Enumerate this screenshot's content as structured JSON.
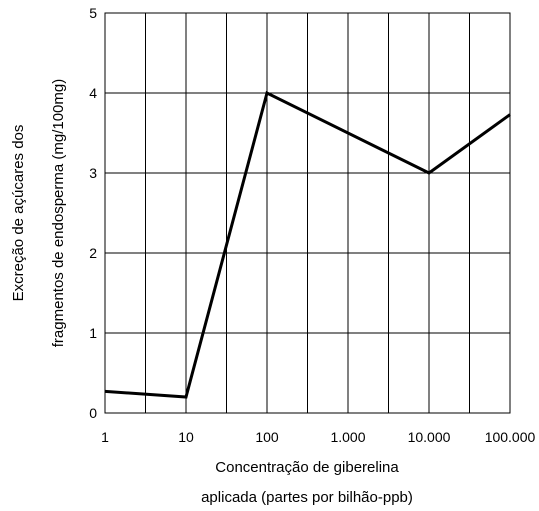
{
  "chart_data": {
    "type": "line",
    "x_scale": "log",
    "x": [
      1,
      10,
      100,
      1000,
      10000,
      100000
    ],
    "x_tick_labels": [
      "1",
      "10",
      "100",
      "1.000",
      "10.000",
      "100.000"
    ],
    "y_ticks": [
      0,
      1,
      2,
      3,
      4,
      5
    ],
    "y_tick_labels": [
      "0",
      "1",
      "2",
      "3",
      "4",
      "5"
    ],
    "ylim": [
      0,
      5
    ],
    "series": [
      {
        "x": [
          1,
          10,
          100,
          10000,
          100000
        ],
        "values": [
          0.27,
          0.2,
          4.0,
          3.0,
          3.73
        ],
        "color": "#000000"
      }
    ],
    "xlabel_line1": "Concentração de giberelina",
    "xlabel_line2": "aplicada (partes por bilhão-ppb)",
    "ylabel_line1": "Excreção de açúcares dos",
    "ylabel_line2": "fragmentos de endosperma (mg/100mg)",
    "grid": true,
    "legend": "none"
  }
}
